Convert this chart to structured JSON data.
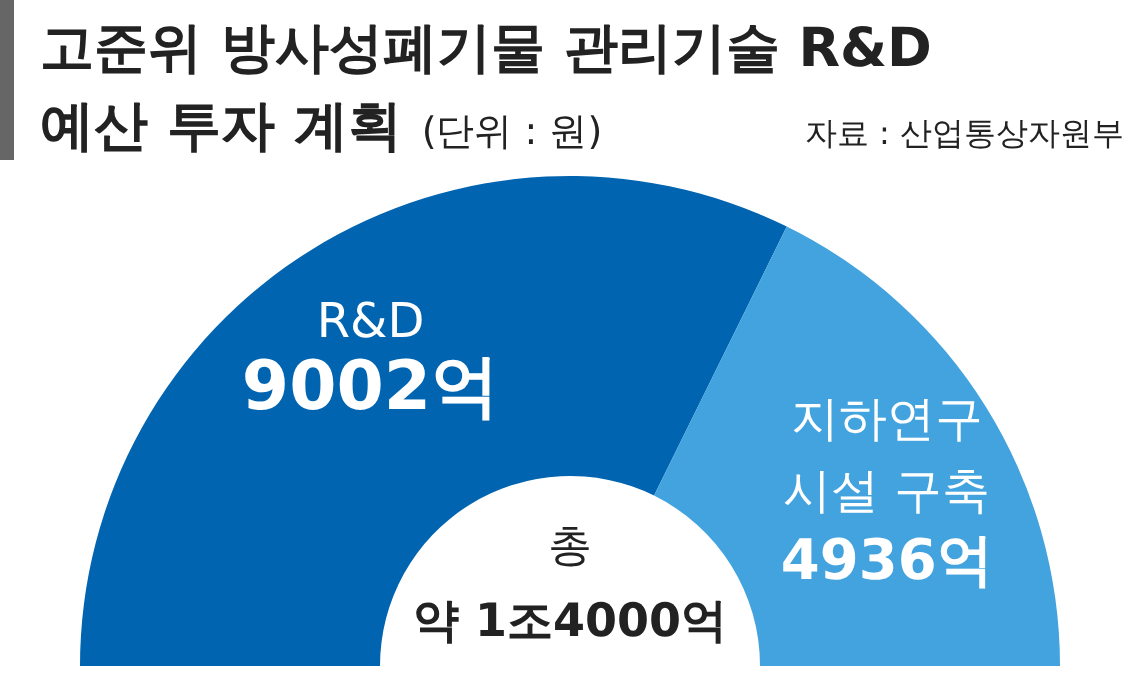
{
  "chart_data": {
    "type": "donut",
    "title": "고준위 방사성폐기물 관리기술 R&D 예산 투자 계획",
    "subtitle": "(단위 : 원)",
    "categories": [
      "R&D",
      "지하연구 시설 구축"
    ],
    "values": [
      9002,
      4936
    ],
    "value_labels": [
      "9002억",
      "4936억"
    ],
    "colors": [
      "#0064b1",
      "#42a3de"
    ],
    "annotations": [
      "자료 : 산업통상자원부",
      "총 약 1조4000억"
    ]
  }
}
